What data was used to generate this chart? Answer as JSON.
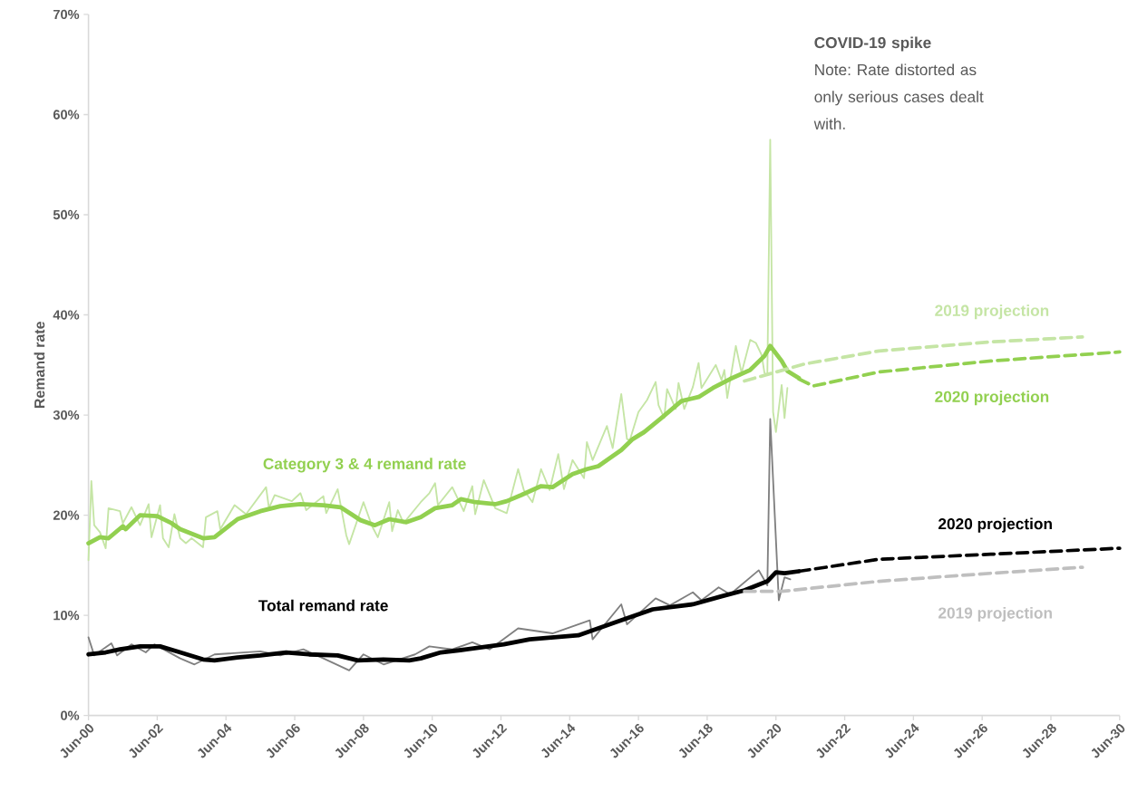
{
  "chart_data": {
    "type": "line",
    "ylabel": "Remand rate",
    "xlim": [
      "2000-06",
      "2030-06"
    ],
    "ylim": [
      0,
      70
    ],
    "xticks": [
      {
        "value": "2000-06",
        "label": "Jun-00"
      },
      {
        "value": "2002-06",
        "label": "Jun-02"
      },
      {
        "value": "2004-06",
        "label": "Jun-04"
      },
      {
        "value": "2006-06",
        "label": "Jun-06"
      },
      {
        "value": "2008-06",
        "label": "Jun-08"
      },
      {
        "value": "2010-06",
        "label": "Jun-10"
      },
      {
        "value": "2012-06",
        "label": "Jun-12"
      },
      {
        "value": "2014-06",
        "label": "Jun-14"
      },
      {
        "value": "2016-06",
        "label": "Jun-16"
      },
      {
        "value": "2018-06",
        "label": "Jun-18"
      },
      {
        "value": "2020-06",
        "label": "Jun-20"
      },
      {
        "value": "2022-06",
        "label": "Jun-22"
      },
      {
        "value": "2024-06",
        "label": "Jun-24"
      },
      {
        "value": "2026-06",
        "label": "Jun-26"
      },
      {
        "value": "2028-06",
        "label": "Jun-28"
      },
      {
        "value": "2030-06",
        "label": "Jun-30"
      }
    ],
    "yticks": [
      {
        "value": 0,
        "label": "0%"
      },
      {
        "value": 10,
        "label": "10%"
      },
      {
        "value": 20,
        "label": "20%"
      },
      {
        "value": 30,
        "label": "30%"
      },
      {
        "value": 40,
        "label": "40%"
      },
      {
        "value": 50,
        "label": "50%"
      },
      {
        "value": 60,
        "label": "60%"
      },
      {
        "value": 70,
        "label": "70%"
      }
    ],
    "annotations": [
      "COVID-19 spike",
      "Note: Rate distorted as only serious cases dealt with."
    ],
    "series": [
      {
        "color": "#c5e5a5",
        "x": [
          "2000-06",
          "2000-07",
          "2000-08",
          "2000-10",
          "2000-12",
          "2001-01",
          "2001-05",
          "2001-06",
          "2001-09",
          "2001-12",
          "2002-03",
          "2002-04",
          "2002-07",
          "2002-08",
          "2002-10",
          "2002-12",
          "2003-02",
          "2003-04",
          "2003-06",
          "2003-10",
          "2003-11",
          "2004-03",
          "2004-04",
          "2004-09",
          "2005-01",
          "2005-08",
          "2005-09",
          "2005-11",
          "2006-05",
          "2006-08",
          "2006-10",
          "2007-04",
          "2007-05",
          "2007-09",
          "2007-12",
          "2008-01",
          "2008-06",
          "2008-09",
          "2008-11",
          "2009-03",
          "2009-04",
          "2009-06",
          "2009-08",
          "2010-02",
          "2010-05",
          "2010-07",
          "2010-08",
          "2011-01",
          "2011-05",
          "2011-08",
          "2011-09",
          "2011-12",
          "2012-04",
          "2012-08",
          "2012-12",
          "2013-02",
          "2013-05",
          "2013-08",
          "2013-11",
          "2014-02",
          "2014-04",
          "2014-07",
          "2014-11",
          "2014-12",
          "2015-02",
          "2015-07",
          "2015-09",
          "2015-12",
          "2016-02",
          "2016-03",
          "2016-06",
          "2016-09",
          "2016-12",
          "2017-01",
          "2017-03",
          "2017-04",
          "2017-07",
          "2017-08",
          "2017-10",
          "2018-01",
          "2018-03",
          "2018-04",
          "2018-09",
          "2018-11",
          "2018-12",
          "2019-01",
          "2019-04",
          "2019-06",
          "2019-09",
          "2019-11",
          "2020-01",
          "2020-02",
          "2020-03",
          "2020-04",
          "2020-05",
          "2020-06",
          "2020-08",
          "2020-09",
          "2020-10"
        ],
        "values": [
          15.5,
          23.4,
          19.0,
          18.3,
          16.7,
          20.7,
          20.4,
          19.2,
          20.8,
          19.0,
          21.1,
          17.8,
          21.0,
          17.7,
          16.8,
          20.1,
          17.7,
          17.2,
          17.7,
          16.8,
          19.8,
          20.4,
          18.6,
          21.0,
          20.1,
          22.8,
          20.7,
          22.0,
          21.4,
          22.2,
          20.5,
          21.9,
          20.2,
          22.6,
          18.0,
          17.1,
          21.3,
          18.9,
          17.8,
          21.3,
          18.4,
          20.5,
          19.2,
          21.3,
          22.2,
          23.2,
          21.0,
          22.8,
          20.4,
          22.9,
          20.1,
          23.5,
          20.7,
          20.2,
          24.6,
          22.5,
          21.3,
          24.6,
          22.5,
          26.1,
          22.6,
          25.5,
          23.7,
          27.3,
          25.5,
          28.9,
          26.7,
          32.1,
          27.6,
          27.5,
          30.3,
          31.5,
          33.3,
          31.0,
          29.7,
          32.6,
          30.6,
          33.2,
          30.6,
          32.8,
          35.2,
          32.7,
          35.0,
          33.5,
          34.5,
          31.7,
          36.9,
          34.2,
          37.5,
          37.2,
          36.0,
          34.2,
          34.0,
          57.5,
          30.3,
          28.3,
          33.0,
          29.7,
          32.7
        ]
      },
      {
        "name": "Category 3 & 4 remand rate",
        "color": "#92d050",
        "x": [
          "2000-06",
          "2000-10",
          "2001-01",
          "2001-06",
          "2001-07",
          "2001-12",
          "2002-06",
          "2002-11",
          "2003-02",
          "2003-10",
          "2004-02",
          "2004-10",
          "2005-06",
          "2006-01",
          "2006-08",
          "2007-04",
          "2007-10",
          "2008-05",
          "2008-10",
          "2009-03",
          "2009-09",
          "2010-02",
          "2010-07",
          "2011-01",
          "2011-04",
          "2011-09",
          "2012-04",
          "2012-08",
          "2013-01",
          "2013-08",
          "2013-12",
          "2014-07",
          "2014-12",
          "2015-04",
          "2015-12",
          "2016-04",
          "2016-08",
          "2017-02",
          "2017-09",
          "2018-03",
          "2018-08",
          "2019-02",
          "2019-09",
          "2020-02",
          "2020-04",
          "2020-08",
          "2020-10",
          "2021-02"
        ],
        "values": [
          17.2,
          17.8,
          17.7,
          18.9,
          18.6,
          20.0,
          19.9,
          19.2,
          18.6,
          17.7,
          17.8,
          19.6,
          20.4,
          20.9,
          21.1,
          21.0,
          20.8,
          19.5,
          19.0,
          19.6,
          19.3,
          19.8,
          20.7,
          21.0,
          21.6,
          21.3,
          21.1,
          21.4,
          22.0,
          22.9,
          22.8,
          24.1,
          24.6,
          24.9,
          26.5,
          27.6,
          28.3,
          29.7,
          31.4,
          31.8,
          32.7,
          33.6,
          34.5,
          35.9,
          36.9,
          35.4,
          34.4,
          33.7
        ]
      },
      {
        "name": "2019 projection",
        "color": "#c5e5a5",
        "line_style": "dashed",
        "x": [
          "2019-07",
          "2021-04",
          "2023-06",
          "2026-09",
          "2029-05"
        ],
        "values": [
          33.4,
          35.1,
          36.4,
          37.3,
          37.8
        ]
      },
      {
        "name": "2020 projection",
        "color": "#92d050",
        "line_style": "dashed",
        "x": [
          "2021-02",
          "2021-07",
          "2023-06",
          "2026-09",
          "2030-06"
        ],
        "values": [
          33.6,
          32.9,
          34.3,
          35.4,
          36.3
        ]
      },
      {
        "color": "#808080",
        "x": [
          "2000-06",
          "2000-08",
          "2001-02",
          "2001-04",
          "2001-09",
          "2002-02",
          "2002-05",
          "2003-02",
          "2003-07",
          "2004-02",
          "2005-06",
          "2006-01",
          "2006-09",
          "2007-04",
          "2008-01",
          "2008-06",
          "2009-01",
          "2009-12",
          "2010-05",
          "2011-01",
          "2011-08",
          "2012-02",
          "2012-12",
          "2013-12",
          "2015-01",
          "2015-02",
          "2015-12",
          "2016-02",
          "2016-12",
          "2017-05",
          "2018-01",
          "2018-04",
          "2018-10",
          "2019-02",
          "2019-12",
          "2020-03",
          "2020-04",
          "2020-07",
          "2020-09",
          "2020-11"
        ],
        "values": [
          7.8,
          6.0,
          7.2,
          6.0,
          7.1,
          6.3,
          7.1,
          5.7,
          5.1,
          6.1,
          6.4,
          6.0,
          6.6,
          5.7,
          4.5,
          6.1,
          5.1,
          6.1,
          6.9,
          6.6,
          7.3,
          6.6,
          8.7,
          8.2,
          9.5,
          7.6,
          11.1,
          9.1,
          11.7,
          11.0,
          12.3,
          11.5,
          12.8,
          12.1,
          14.5,
          13.0,
          29.6,
          11.5,
          13.8,
          13.6
        ]
      },
      {
        "name": "Total remand rate",
        "color": "#000000",
        "x": [
          "2000-06",
          "2000-12",
          "2001-05",
          "2001-12",
          "2002-07",
          "2003-01",
          "2003-10",
          "2004-02",
          "2004-10",
          "2005-06",
          "2006-03",
          "2006-11",
          "2007-09",
          "2008-04",
          "2009-01",
          "2009-10",
          "2010-02",
          "2010-09",
          "2011-06",
          "2012-07",
          "2013-04",
          "2014-09",
          "2015-10",
          "2016-11",
          "2018-01",
          "2018-11",
          "2019-07",
          "2020-03",
          "2020-06",
          "2020-09",
          "2021-02"
        ],
        "values": [
          6.1,
          6.3,
          6.6,
          6.9,
          6.9,
          6.4,
          5.6,
          5.5,
          5.8,
          6.0,
          6.3,
          6.1,
          6.0,
          5.5,
          5.6,
          5.5,
          5.7,
          6.3,
          6.6,
          7.1,
          7.6,
          8.0,
          9.3,
          10.6,
          11.1,
          11.9,
          12.5,
          13.4,
          14.3,
          14.2,
          14.4
        ]
      },
      {
        "name": "2020 projection",
        "color": "#000000",
        "line_style": "dashed",
        "x": [
          "2021-02",
          "2023-06",
          "2026-09",
          "2030-06"
        ],
        "values": [
          14.4,
          15.6,
          16.1,
          16.7
        ]
      },
      {
        "name": "2019 projection",
        "color": "#bfbfbf",
        "line_style": "dashed",
        "x": [
          "2019-07",
          "2020-08",
          "2023-06",
          "2026-09",
          "2029-05"
        ],
        "values": [
          12.4,
          12.4,
          13.4,
          14.2,
          14.8
        ]
      }
    ]
  }
}
